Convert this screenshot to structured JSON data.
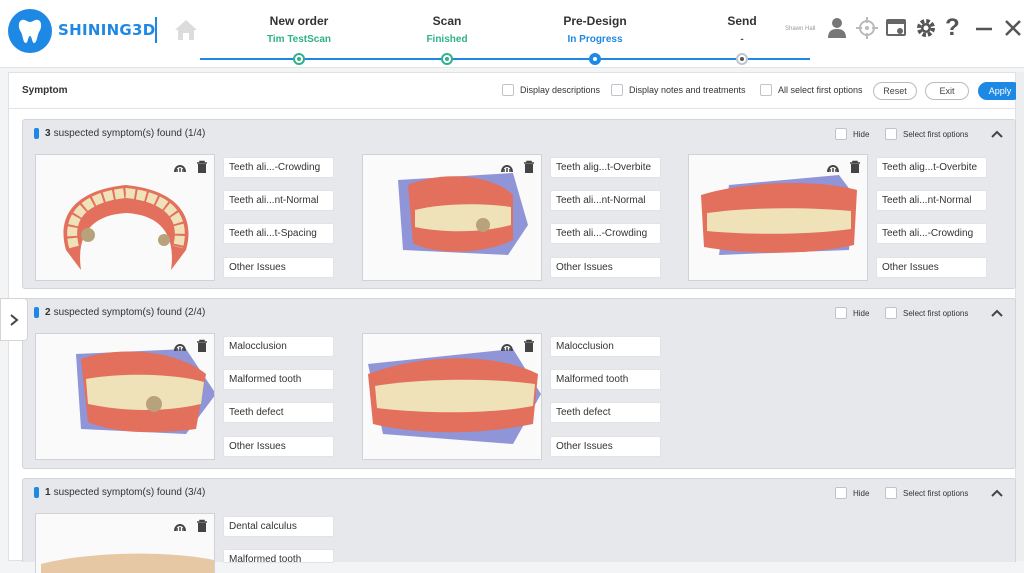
{
  "brand": {
    "name": "SHINING3D"
  },
  "steps": [
    {
      "title": "New order",
      "status": "Tim TestScan",
      "color": "#2fb18a"
    },
    {
      "title": "Scan",
      "status": "Finished",
      "color": "#2fb18a"
    },
    {
      "title": "Pre-Design",
      "status": "In Progress",
      "color": "#1e88e5"
    },
    {
      "title": "Send",
      "status": "-",
      "color": "#555555"
    }
  ],
  "user": {
    "name": "Shawn Hall"
  },
  "toolbar": {
    "title": "Symptom",
    "display_descriptions": "Display descriptions",
    "display_notes": "Display notes and treatments",
    "all_select_first": "All select first options",
    "reset": "Reset",
    "exit": "Exit",
    "apply": "Apply"
  },
  "groups": [
    {
      "count": "3",
      "label": "suspected symptom(s) found (1/4)",
      "hide": "Hide",
      "select_first": "Select first options",
      "cards": [
        {
          "tags": [
            "Teeth ali...-Crowding",
            "Teeth ali...nt-Normal",
            "Teeth ali...t-Spacing",
            "Other Issues"
          ]
        },
        {
          "tags": [
            "Teeth alig...t-Overbite",
            "Teeth ali...nt-Normal",
            "Teeth ali...-Crowding",
            "Other Issues"
          ]
        },
        {
          "tags": [
            "Teeth alig...t-Overbite",
            "Teeth ali...nt-Normal",
            "Teeth ali...-Crowding",
            "Other Issues"
          ]
        }
      ]
    },
    {
      "count": "2",
      "label": "suspected symptom(s) found (2/4)",
      "hide": "Hide",
      "select_first": "Select first options",
      "cards": [
        {
          "tags": [
            "Malocclusion",
            "Malformed tooth",
            "Teeth defect",
            "Other Issues"
          ]
        },
        {
          "tags": [
            "Malocclusion",
            "Malformed tooth",
            "Teeth defect",
            "Other Issues"
          ]
        }
      ]
    },
    {
      "count": "1",
      "label": "suspected symptom(s) found (3/4)",
      "hide": "Hide",
      "select_first": "Select first options",
      "cards": [
        {
          "tags": [
            "Dental calculus",
            "Malformed tooth",
            "",
            ""
          ]
        }
      ]
    }
  ],
  "colors": {
    "accent": "#1e88e5",
    "done": "#2fb18a",
    "gum": "#e2705c",
    "tooth": "#efe1b8",
    "tray": "#8f95d6"
  }
}
